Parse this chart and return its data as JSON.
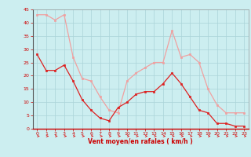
{
  "x": [
    0,
    1,
    2,
    3,
    4,
    5,
    6,
    7,
    8,
    9,
    10,
    11,
    12,
    13,
    14,
    15,
    16,
    17,
    18,
    19,
    20,
    21,
    22,
    23
  ],
  "vent_moyen": [
    28,
    22,
    22,
    24,
    18,
    11,
    7,
    4,
    3,
    8,
    10,
    13,
    14,
    14,
    17,
    21,
    17,
    12,
    7,
    6,
    2,
    2,
    1,
    1
  ],
  "vent_rafales": [
    43,
    43,
    41,
    43,
    27,
    19,
    18,
    12,
    7,
    6,
    18,
    21,
    23,
    25,
    25,
    37,
    27,
    28,
    25,
    15,
    9,
    6,
    6,
    6
  ],
  "xlabel": "Vent moyen/en rafales ( km/h )",
  "ylim": [
    0,
    45
  ],
  "yticks": [
    0,
    5,
    10,
    15,
    20,
    25,
    30,
    35,
    40,
    45
  ],
  "xticks": [
    0,
    1,
    2,
    3,
    4,
    5,
    6,
    7,
    8,
    9,
    10,
    11,
    12,
    13,
    14,
    15,
    16,
    17,
    18,
    19,
    20,
    21,
    22,
    23
  ],
  "bg_color": "#cceef0",
  "grid_color": "#aad4d8",
  "line_color_moyen": "#dd2020",
  "line_color_rafales": "#f0a0a0",
  "tick_label_color": "#cc0000",
  "xlabel_color": "#cc0000"
}
